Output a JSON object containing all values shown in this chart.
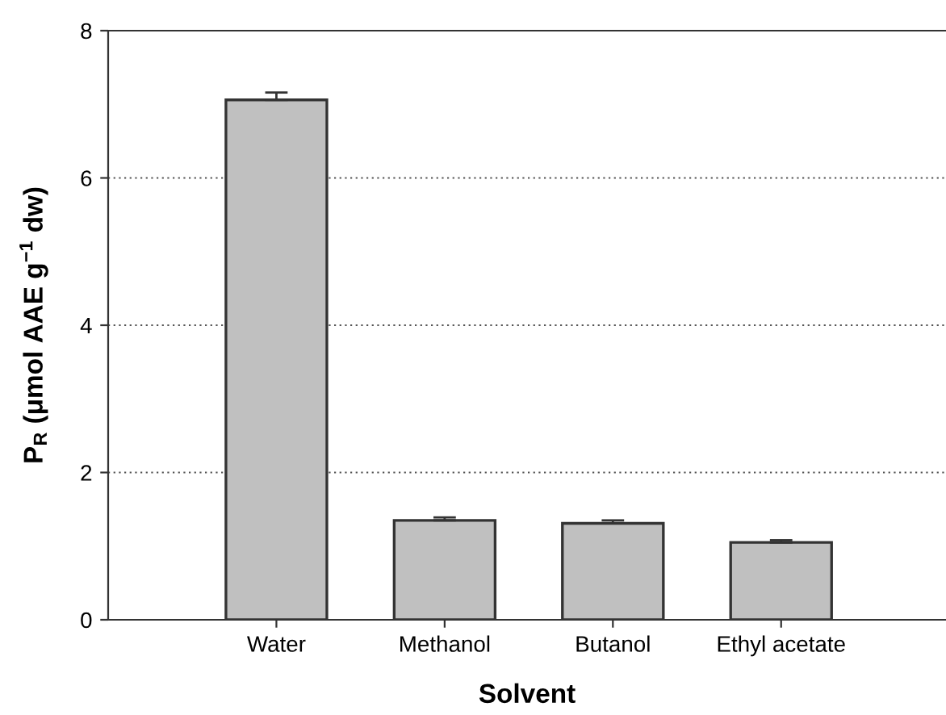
{
  "chart_data": {
    "type": "bar",
    "xlabel": "Solvent",
    "ylabel": "P$_{R}$ (μmol AAE g$^{−1}$ dw)",
    "categories": [
      "Water",
      "Methanol",
      "Butanol",
      "Ethyl acetate"
    ],
    "values": [
      7.06,
      1.35,
      1.31,
      1.05
    ],
    "errors": [
      0.1,
      0.04,
      0.04,
      0.03
    ],
    "color": "#c0c0c0",
    "ylim": [
      0,
      8
    ],
    "yticks": [
      0,
      2,
      4,
      6,
      8
    ],
    "grid": "y"
  }
}
